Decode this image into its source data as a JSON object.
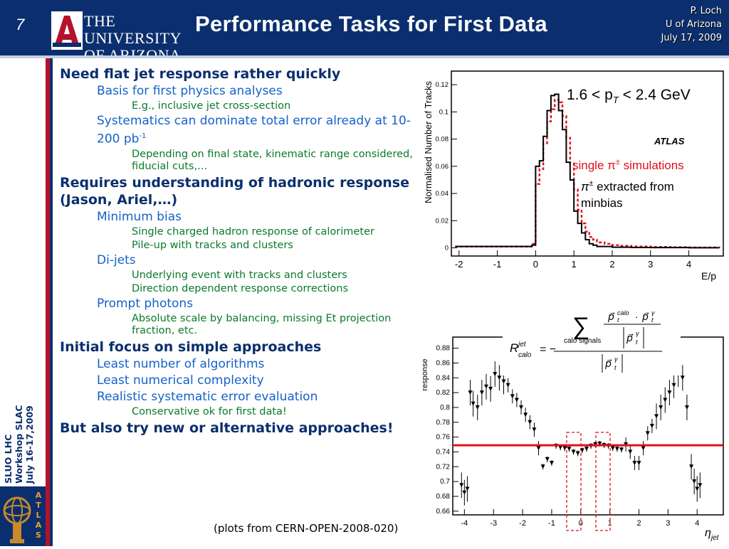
{
  "header": {
    "slide_number": "7",
    "logo_line1": "THE UNIVERSITY",
    "logo_line2": "OF ARIZONA.",
    "title": "Performance Tasks for First Data",
    "author": "P. Loch",
    "institution": "U of Arizona",
    "date": "July 17, 2009"
  },
  "sidebar": {
    "line1": "SLUO LHC",
    "line2": "Workshop SLAC",
    "line3": "July 16-17,2009",
    "logo_letters": "ATLAS"
  },
  "bullets": [
    {
      "level": 1,
      "text": "Need flat jet response rather quickly"
    },
    {
      "level": 2,
      "text": "Basis for first physics analyses"
    },
    {
      "level": 3,
      "text": "E.g., inclusive jet cross-section"
    },
    {
      "level": 2,
      "text": "Systematics can dominate total error already at 10-200 pb",
      "sup": "-1"
    },
    {
      "level": 3,
      "text": "Depending on final state, kinematic range considered, fiducial cuts,…"
    },
    {
      "level": 1,
      "text": "Requires understanding of hadronic response (Jason, Ariel,…)"
    },
    {
      "level": 2,
      "text": "Minimum bias"
    },
    {
      "level": 3,
      "text": "Single charged hadron response of calorimeter"
    },
    {
      "level": 3,
      "text": "Pile-up with tracks and clusters"
    },
    {
      "level": 2,
      "text": "Di-jets"
    },
    {
      "level": 3,
      "text": "Underlying event with tracks and clusters"
    },
    {
      "level": 3,
      "text": "Direction dependent response corrections"
    },
    {
      "level": 2,
      "text": "Prompt photons"
    },
    {
      "level": 3,
      "text": "Absolute scale by balancing, missing Et projection fraction, etc."
    },
    {
      "level": 1,
      "text": "Initial focus on simple approaches"
    },
    {
      "level": 2,
      "text": "Least number of algorithms"
    },
    {
      "level": 2,
      "text": "Least numerical complexity"
    },
    {
      "level": 2,
      "text": "Realistic systematic error evaluation"
    },
    {
      "level": 3,
      "text": "Conservative ok for first data!"
    },
    {
      "level": 1,
      "text": "But also try new or alternative approaches!"
    }
  ],
  "caption": "(plots from CERN-OPEN-2008-020)",
  "colors": {
    "header_bg": "#0b2f6e",
    "level1": "#0b2f6e",
    "level2": "#1562c8",
    "level3": "#0a7a2a",
    "sim_red": "#e0101a"
  },
  "chart_data": [
    {
      "type": "line",
      "title": "",
      "xlabel": "E/p",
      "ylabel": "Normalised Number of Tracks",
      "xlim": [
        -2.2,
        4.9
      ],
      "ylim": [
        -0.006,
        0.13
      ],
      "xticks": [
        "-2",
        "-1",
        "0",
        "1",
        "2",
        "3",
        "4"
      ],
      "yticks": [
        "0",
        "0.02",
        "0.04",
        "0.06",
        "0.08",
        "0.1",
        "0.12"
      ],
      "annotations": {
        "range": "1.6 < p",
        "range_sub": "T",
        "range_tail": " < 2.4 GeV",
        "experiment": "ATLAS",
        "sim_label": "single π",
        "sim_sup": "±",
        "sim_tail": " simulations",
        "data_label1": "π",
        "data_sup": "±",
        "data_tail": " extracted from",
        "data_label2": "minbias"
      },
      "series": [
        {
          "name": "single π± simulations",
          "style": "red-dashed",
          "x": [
            -2.1,
            -0.2,
            -0.1,
            0.0,
            0.1,
            0.2,
            0.3,
            0.4,
            0.5,
            0.6,
            0.7,
            0.8,
            0.9,
            1.0,
            1.1,
            1.2,
            1.3,
            1.4,
            1.5,
            1.6,
            1.8,
            2.0,
            2.2,
            2.5,
            3.0,
            3.5,
            4.0,
            4.8
          ],
          "y": [
            0.001,
            0.001,
            0.003,
            0.047,
            0.058,
            0.077,
            0.093,
            0.102,
            0.109,
            0.107,
            0.097,
            0.081,
            0.062,
            0.043,
            0.028,
            0.018,
            0.012,
            0.008,
            0.006,
            0.004,
            0.003,
            0.002,
            0.0015,
            0.001,
            0.0007,
            0.0005,
            0.0003,
            0.0002
          ]
        },
        {
          "name": "π± extracted from minbias",
          "style": "black-solid",
          "x": [
            -2.1,
            -0.2,
            -0.1,
            0.0,
            0.1,
            0.2,
            0.3,
            0.4,
            0.5,
            0.6,
            0.7,
            0.8,
            0.9,
            1.0,
            1.1,
            1.2,
            1.3,
            1.4,
            1.5,
            1.6,
            1.8,
            2.0,
            2.5,
            3.0,
            4.0,
            4.8
          ],
          "y": [
            0.001,
            0.001,
            0.002,
            0.06,
            0.064,
            0.082,
            0.101,
            0.112,
            0.113,
            0.101,
            0.087,
            0.063,
            0.05,
            0.027,
            0.018,
            0.011,
            0.006,
            0.003,
            0.002,
            0.001,
            0.001,
            0.0005,
            0.0003,
            0.0002,
            0.0001,
            0.0001
          ]
        }
      ]
    },
    {
      "type": "scatter",
      "title": "",
      "xlabel": "η",
      "xlabel_sub": "jet",
      "ylabel": "response",
      "xlim": [
        -4.4,
        4.9
      ],
      "ylim": [
        0.655,
        0.895
      ],
      "xticks": [
        "-4",
        "-3",
        "-2",
        "-1",
        "0",
        "1",
        "2",
        "3",
        "4"
      ],
      "yticks": [
        "0.66",
        "0.68",
        "0.7",
        "0.72",
        "0.74",
        "0.76",
        "0.78",
        "0.8",
        "0.82",
        "0.84",
        "0.86",
        "0.88"
      ],
      "formula": {
        "lhs": "R",
        "lhs_sup": "jet",
        "lhs_sub": "calo",
        "equals": "= −",
        "sum_label": "calo signals",
        "p_sup_calo": "calo",
        "p_sup_gamma": "γ",
        "p_sub": "t"
      },
      "reference_line": 0.749,
      "series": [
        {
          "name": "",
          "x": [
            -4.1,
            -4.0,
            -3.9,
            -3.8,
            -3.7,
            -3.55,
            -3.4,
            -3.25,
            -3.1,
            -2.95,
            -2.8,
            -2.65,
            -2.5,
            -2.35,
            -2.2,
            -2.05,
            -1.9,
            -1.75,
            -1.6,
            -1.45,
            -1.3,
            -1.15,
            -1.0,
            -0.85,
            -0.7,
            -0.55,
            -0.4,
            -0.25,
            -0.1,
            0.05,
            0.2,
            0.35,
            0.5,
            0.65,
            0.8,
            0.95,
            1.1,
            1.25,
            1.4,
            1.55,
            1.7,
            1.85,
            2.0,
            2.15,
            2.3,
            2.45,
            2.6,
            2.75,
            2.9,
            3.05,
            3.2,
            3.35,
            3.5,
            3.65,
            3.8,
            3.9,
            4.0,
            4.1
          ],
          "y": [
            0.695,
            0.685,
            0.69,
            0.82,
            0.805,
            0.8,
            0.82,
            0.828,
            0.825,
            0.845,
            0.84,
            0.835,
            0.83,
            0.815,
            0.81,
            0.8,
            0.79,
            0.78,
            0.77,
            0.745,
            0.72,
            0.73,
            0.725,
            0.748,
            0.746,
            0.745,
            0.744,
            0.74,
            0.738,
            0.742,
            0.744,
            0.748,
            0.75,
            0.751,
            0.749,
            0.748,
            0.745,
            0.744,
            0.743,
            0.75,
            0.74,
            0.725,
            0.725,
            0.745,
            0.765,
            0.775,
            0.788,
            0.8,
            0.81,
            0.82,
            0.83,
            0.845,
            0.84,
            0.8,
            0.72,
            0.7,
            0.69,
            0.695
          ]
        }
      ]
    }
  ]
}
